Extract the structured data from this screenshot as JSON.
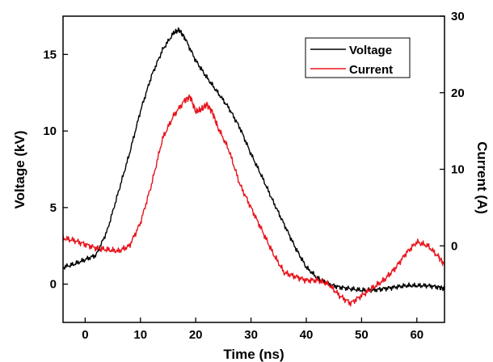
{
  "chart_data": {
    "type": "line",
    "title": "",
    "xlabel": "Time (ns)",
    "ylabel_left": "Voltage (kV)",
    "ylabel_right": "Current (A)",
    "xlim": [
      -4,
      65
    ],
    "ylim_left": [
      -2.5,
      17.5
    ],
    "ylim_right": [
      -10,
      30
    ],
    "xticks": [
      0,
      10,
      20,
      30,
      40,
      50,
      60
    ],
    "yticks_left": [
      0,
      5,
      10,
      15
    ],
    "yticks_right": [
      0,
      10,
      20,
      30
    ],
    "grid": false,
    "legend": "top-right",
    "series": [
      {
        "name": "Voltage",
        "axis": "left",
        "color": "#000000",
        "x": [
          -4,
          -2,
          0,
          2,
          4,
          6,
          8,
          10,
          12,
          14,
          16,
          17,
          18,
          20,
          22,
          24,
          26,
          28,
          30,
          32,
          34,
          36,
          38,
          40,
          42,
          44,
          46,
          48,
          50,
          52,
          54,
          56,
          58,
          60,
          62,
          64,
          65
        ],
        "values": [
          1.1,
          1.3,
          1.6,
          1.9,
          3.5,
          6.0,
          8.5,
          11.3,
          13.6,
          15.3,
          16.4,
          16.6,
          16.1,
          14.6,
          13.5,
          12.5,
          11.5,
          10.2,
          8.5,
          7.0,
          5.4,
          3.9,
          2.4,
          1.1,
          0.4,
          0.0,
          -0.2,
          -0.3,
          -0.4,
          -0.4,
          -0.3,
          -0.2,
          -0.1,
          -0.1,
          -0.1,
          -0.2,
          -0.3
        ]
      },
      {
        "name": "Current",
        "axis": "right",
        "color": "#e8141c",
        "x": [
          -4,
          -2,
          0,
          2,
          4,
          6,
          8,
          10,
          12,
          14,
          16,
          18,
          19,
          20,
          21,
          22,
          23,
          24,
          26,
          28,
          30,
          32,
          34,
          36,
          38,
          40,
          42,
          44,
          46,
          48,
          50,
          52,
          54,
          56,
          58,
          60,
          62,
          64,
          65
        ],
        "values": [
          1.0,
          0.7,
          0.2,
          -0.3,
          -0.5,
          -0.7,
          0.0,
          3.0,
          8.0,
          14.0,
          17.0,
          19.0,
          19.5,
          17.5,
          17.8,
          18.5,
          17.5,
          15.5,
          12.5,
          8.0,
          5.0,
          2.0,
          -1.0,
          -3.5,
          -4.0,
          -4.5,
          -4.5,
          -5.0,
          -6.5,
          -7.5,
          -6.5,
          -5.5,
          -4.5,
          -3.0,
          -1.0,
          0.5,
          0.0,
          -1.5,
          -2.5
        ]
      }
    ]
  }
}
